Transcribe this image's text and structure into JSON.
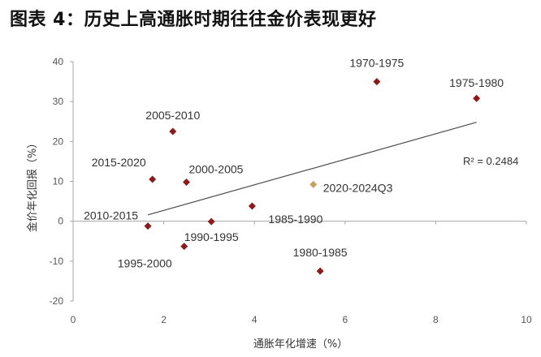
{
  "title": "图表 4：历史上高通胀时期往往金价表现更好",
  "chart_data": {
    "type": "scatter",
    "xlabel": "通胀年化增速（%）",
    "ylabel": "金价年化回报（%）",
    "xlim": [
      0,
      10
    ],
    "ylim": [
      -20,
      40
    ],
    "xticks": [
      0,
      2,
      4,
      6,
      8,
      10
    ],
    "yticks": [
      -20,
      -10,
      0,
      10,
      20,
      30,
      40
    ],
    "grid": false,
    "points": [
      {
        "label": "1970-1975",
        "x": 6.7,
        "y": 35.0,
        "color": "#8b1a1a"
      },
      {
        "label": "1975-1980",
        "x": 8.9,
        "y": 30.8,
        "color": "#8b1a1a"
      },
      {
        "label": "2005-2010",
        "x": 2.2,
        "y": 22.5,
        "color": "#8b1a1a"
      },
      {
        "label": "2015-2020",
        "x": 1.75,
        "y": 10.5,
        "color": "#8b1a1a"
      },
      {
        "label": "2000-2005",
        "x": 2.5,
        "y": 9.8,
        "color": "#8b1a1a"
      },
      {
        "label": "2020-2024Q3",
        "x": 5.3,
        "y": 9.2,
        "color": "#c8a064"
      },
      {
        "label": "1985-1990",
        "x": 3.95,
        "y": 3.8,
        "color": "#8b1a1a"
      },
      {
        "label": "2010-2015",
        "x": 1.65,
        "y": -1.2,
        "color": "#8b1a1a"
      },
      {
        "label": "1990-1995",
        "x": 3.05,
        "y": -0.1,
        "color": "#8b1a1a"
      },
      {
        "label": "1995-2000",
        "x": 2.45,
        "y": -6.3,
        "color": "#8b1a1a"
      },
      {
        "label": "1980-1985",
        "x": 5.45,
        "y": -12.5,
        "color": "#8b1a1a"
      }
    ],
    "trendline": {
      "x": [
        1.65,
        8.9
      ],
      "y": [
        1.6,
        24.8
      ],
      "color": "#4d4d4d"
    },
    "r_squared_label": "R² = 0.2484",
    "axis_color": "#a6a6a6"
  }
}
